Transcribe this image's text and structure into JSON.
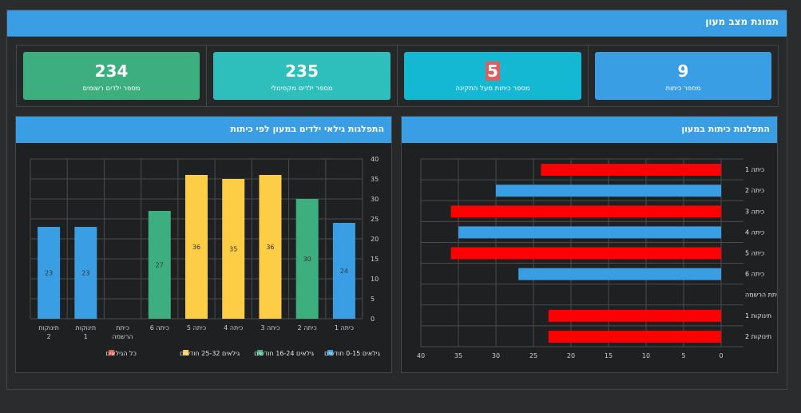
{
  "page": {
    "title": "תמונת מצב מעון"
  },
  "stats": [
    {
      "value": "234",
      "label": "מספר ילדים רשומים",
      "color": "#3daf7f",
      "highlight": false
    },
    {
      "value": "235",
      "label": "מספר ילדים מקסימלי",
      "color": "#2ebfbd",
      "highlight": false
    },
    {
      "value": "5",
      "label": "מספר כיתות מעל התקינה",
      "color": "#15b8d3",
      "highlight": true
    },
    {
      "value": "9",
      "label": "מספר כיתות",
      "color": "#3a9ee4",
      "highlight": false
    }
  ],
  "left_panel": {
    "title": "התפלגות גילאי ילדים במעון לפי כיתות"
  },
  "right_panel": {
    "title": "התפלגות כיתות במעון"
  },
  "chart_data": [
    {
      "type": "bar",
      "categories": [
        "תינוקות 2",
        "תינוקות 1",
        "כיתת הרשמה",
        "כיתה 6",
        "כיתה 5",
        "כיתה 4",
        "כיתה 3",
        "כיתה 2",
        "כיתה 1"
      ],
      "values": [
        23,
        23,
        0,
        27,
        36,
        35,
        36,
        30,
        24
      ],
      "bar_groups": [
        "0-15",
        "0-15",
        "none",
        "16-24",
        "25-32",
        "25-32",
        "25-32",
        "16-24",
        "0-15"
      ],
      "ylim": [
        0,
        40
      ],
      "yticks": [
        0,
        5,
        10,
        15,
        20,
        25,
        30,
        35,
        40
      ],
      "y_axis_side": "right",
      "grid": true,
      "legend_position": "bottom",
      "legend": [
        {
          "label": "גילאים 0-15 חודשים",
          "color": "#3a9ee4",
          "key": "0-15"
        },
        {
          "label": "גילאים 16-24 חודשים",
          "color": "#3daf7f",
          "key": "16-24"
        },
        {
          "label": "גילאים 25-32 חודשים",
          "color": "#fccd45",
          "key": "25-32"
        },
        {
          "label": "כל הגילאים",
          "color": "#e85c4a",
          "key": "all"
        }
      ]
    },
    {
      "type": "bar",
      "orientation": "horizontal",
      "categories": [
        "כיתה 1",
        "כיתה 2",
        "כיתה 3",
        "כיתה 4",
        "כיתה 5",
        "כיתה 6",
        "כיתת הרשמה",
        "תינוקות 1",
        "תינוקות 2"
      ],
      "values": [
        24,
        30,
        36,
        35,
        36,
        27,
        0,
        23,
        23
      ],
      "colors": [
        "#ff0000",
        "#3a9ee4",
        "#ff0000",
        "#3a9ee4",
        "#ff0000",
        "#3a9ee4",
        "#3a9ee4",
        "#ff0000",
        "#ff0000"
      ],
      "xlim": [
        0,
        40
      ],
      "xticks": [
        0,
        5,
        10,
        15,
        20,
        25,
        30,
        35,
        40
      ],
      "x_direction": "right-to-left",
      "grid": true
    }
  ]
}
